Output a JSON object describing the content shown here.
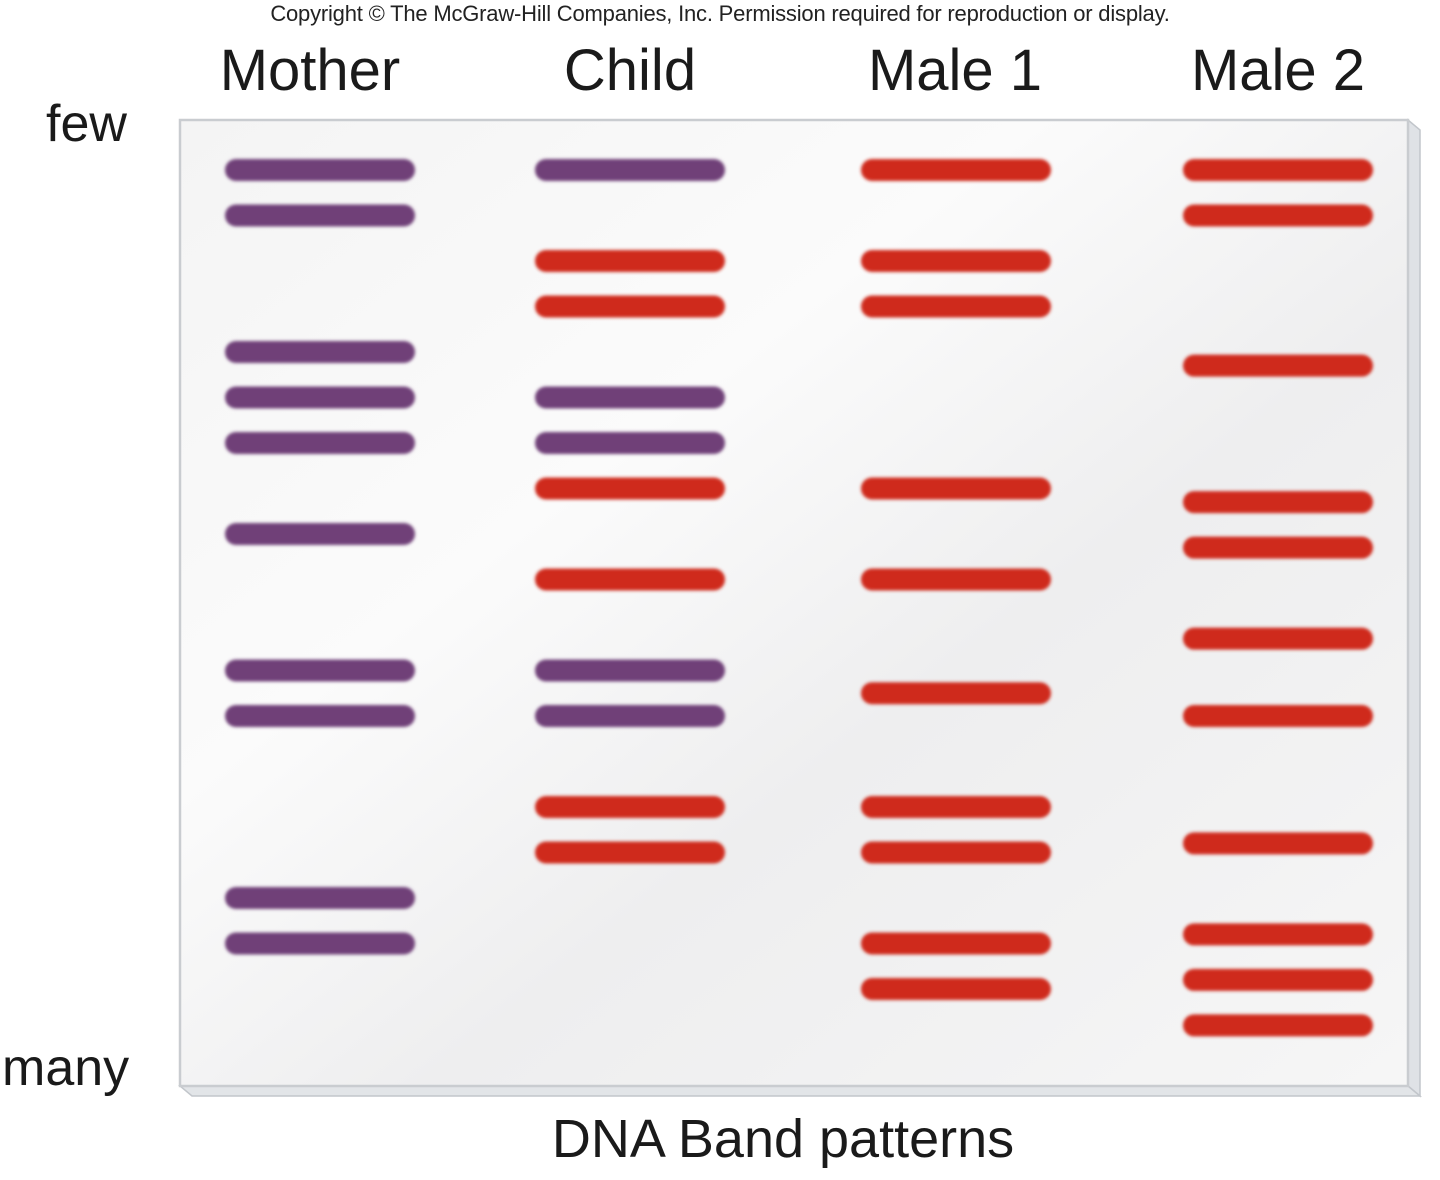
{
  "copyright": "Copyright © The McGraw-Hill Companies, Inc. Permission required for reproduction or display.",
  "axis": {
    "top_label": "few",
    "bottom_label": "many"
  },
  "footer": "DNA Band patterns",
  "colors": {
    "maternal_band": "#6f3f78",
    "paternal_band": "#cf2a1f",
    "gel_background": "#f1f1f1",
    "gel_border": "#c9ccd0"
  },
  "lanes": [
    {
      "label": "Mother",
      "band_color": "maternal",
      "bands": [
        1,
        2,
        5,
        6,
        7,
        9,
        12,
        13,
        17,
        18
      ]
    },
    {
      "label": "Child",
      "band_color": "mixed",
      "bands": [
        {
          "pos": 1,
          "origin": "maternal"
        },
        {
          "pos": 3,
          "origin": "paternal"
        },
        {
          "pos": 4,
          "origin": "paternal"
        },
        {
          "pos": 6,
          "origin": "maternal"
        },
        {
          "pos": 7,
          "origin": "maternal"
        },
        {
          "pos": 8,
          "origin": "paternal"
        },
        {
          "pos": 10,
          "origin": "paternal"
        },
        {
          "pos": 12,
          "origin": "maternal"
        },
        {
          "pos": 13,
          "origin": "maternal"
        },
        {
          "pos": 15,
          "origin": "paternal"
        },
        {
          "pos": 16,
          "origin": "paternal"
        }
      ]
    },
    {
      "label": "Male 1",
      "band_color": "paternal",
      "bands": [
        1,
        3,
        4,
        8,
        10,
        12.5,
        15,
        16,
        18,
        19
      ]
    },
    {
      "label": "Male 2",
      "band_color": "paternal",
      "bands": [
        1,
        2,
        5.3,
        8.3,
        9.3,
        11.3,
        13,
        15.8,
        17.8,
        18.8,
        19.8
      ]
    }
  ]
}
